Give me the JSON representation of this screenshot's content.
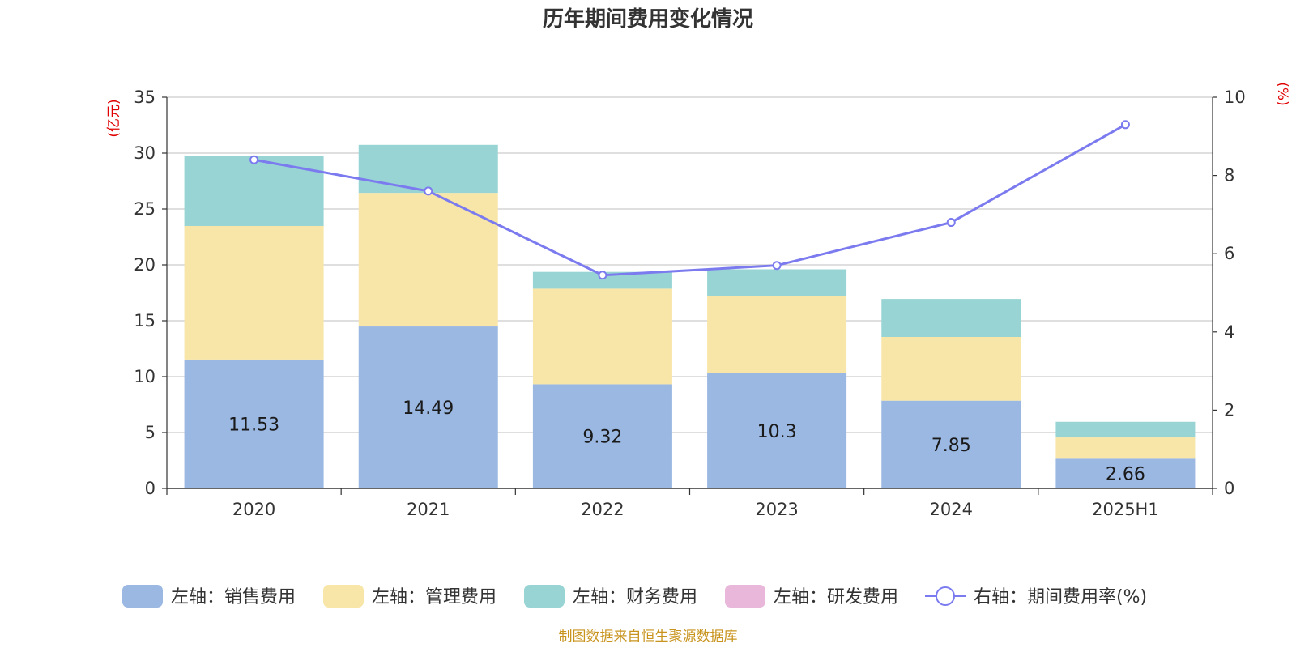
{
  "chart_data": {
    "type": "bar",
    "stacked": true,
    "title": "历年期间费用变化情况",
    "left_unit": "(亿元)",
    "right_unit": "(%)",
    "categories": [
      "2020",
      "2021",
      "2022",
      "2023",
      "2024",
      "2025H1"
    ],
    "left_ylim": [
      0,
      35
    ],
    "left_ticks": [
      0,
      5,
      10,
      15,
      20,
      25,
      30,
      35
    ],
    "right_ylim": [
      0,
      10
    ],
    "right_ticks": [
      0,
      2,
      4,
      6,
      8,
      10
    ],
    "series": [
      {
        "name": "左轴：销售费用",
        "axis": "left",
        "kind": "bar",
        "color": "#9bb8e2",
        "values": [
          11.53,
          14.49,
          9.32,
          10.3,
          7.85,
          2.66
        ],
        "labels": [
          "11.53",
          "14.49",
          "9.32",
          "10.3",
          "7.85",
          "2.66"
        ]
      },
      {
        "name": "左轴：管理费用",
        "axis": "left",
        "kind": "bar",
        "color": "#f8e6a8",
        "values": [
          11.95,
          11.95,
          8.55,
          6.9,
          5.7,
          1.9
        ]
      },
      {
        "name": "左轴：财务费用",
        "axis": "left",
        "kind": "bar",
        "color": "#98d4d4",
        "values": [
          6.25,
          4.3,
          1.5,
          2.4,
          3.4,
          1.4
        ]
      },
      {
        "name": "左轴：研发费用",
        "axis": "left",
        "kind": "bar",
        "color": "#e8b7d9",
        "values": [
          0,
          0,
          0,
          0,
          0,
          0
        ]
      },
      {
        "name": "右轴：期间费用率(%)",
        "axis": "right",
        "kind": "line",
        "color": "#7b7bef",
        "values": [
          8.4,
          7.6,
          5.45,
          5.7,
          6.8,
          9.3
        ]
      }
    ],
    "source": "制图数据来自恒生聚源数据库"
  }
}
